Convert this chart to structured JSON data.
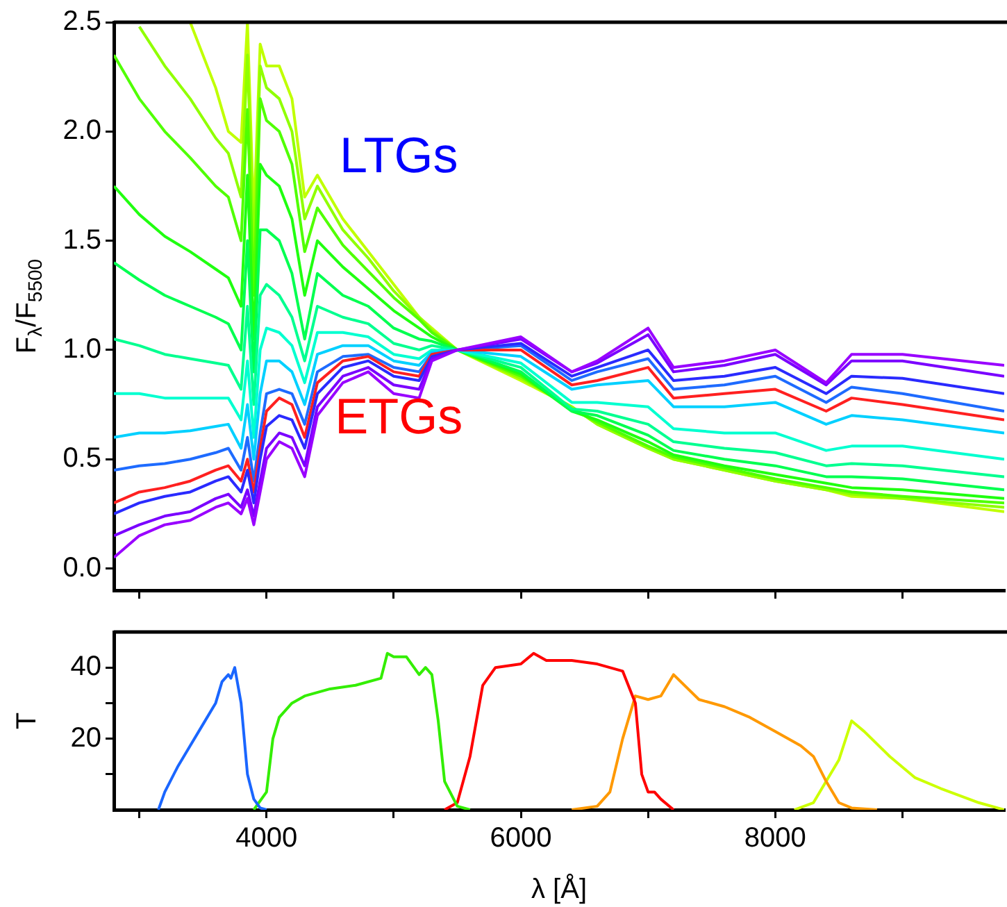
{
  "chart_data": [
    {
      "type": "line",
      "ylabel": "F$_{λ}$/F$_{5500}$",
      "xlim": [
        2800,
        9800
      ],
      "ylim": [
        -0.1,
        2.5
      ],
      "xticks": [
        {
          "value": 3000,
          "label": null
        },
        {
          "value": 4000,
          "label": null
        },
        {
          "value": 5000,
          "label": null
        },
        {
          "value": 6000,
          "label": null
        },
        {
          "value": 7000,
          "label": null
        },
        {
          "value": 8000,
          "label": null
        },
        {
          "value": 9000,
          "label": null
        }
      ],
      "yticks": [
        {
          "value": 0,
          "label": "0.0"
        },
        {
          "value": 0.5,
          "label": "0.5"
        },
        {
          "value": 1,
          "label": "1.0"
        },
        {
          "value": 1.5,
          "label": "1.5"
        },
        {
          "value": 2,
          "label": "2.0"
        },
        {
          "value": 2.5,
          "label": "2.5"
        }
      ],
      "tick_labels": "y",
      "grid": false,
      "legend": false,
      "marker": "none",
      "line_style": "solid",
      "x": [
        2800,
        3000,
        3200,
        3400,
        3600,
        3700,
        3800,
        3850,
        3900,
        3950,
        4000,
        4100,
        4200,
        4300,
        4400,
        4600,
        4800,
        5000,
        5200,
        5300,
        5500,
        6000,
        6400,
        6600,
        7000,
        7200,
        7600,
        8000,
        8400,
        8600,
        9000,
        9800
      ],
      "series": [
        {
          "color": "#9900ff",
          "values": [
            0.05,
            0.15,
            0.2,
            0.22,
            0.28,
            0.3,
            0.25,
            0.32,
            0.2,
            0.35,
            0.5,
            0.58,
            0.55,
            0.42,
            0.7,
            0.85,
            0.9,
            0.8,
            0.78,
            0.95,
            1.0,
            1.06,
            0.9,
            0.95,
            1.1,
            0.92,
            0.95,
            1.0,
            0.85,
            0.98,
            0.98,
            0.93
          ]
        },
        {
          "color": "#7a00ff",
          "values": [
            0.15,
            0.2,
            0.24,
            0.26,
            0.32,
            0.34,
            0.28,
            0.36,
            0.24,
            0.4,
            0.55,
            0.62,
            0.6,
            0.47,
            0.74,
            0.88,
            0.92,
            0.84,
            0.82,
            0.96,
            1.0,
            1.05,
            0.9,
            0.94,
            1.07,
            0.9,
            0.93,
            0.98,
            0.84,
            0.95,
            0.95,
            0.88
          ]
        },
        {
          "color": "#2a2aff",
          "values": [
            0.25,
            0.3,
            0.33,
            0.35,
            0.4,
            0.42,
            0.35,
            0.45,
            0.3,
            0.5,
            0.65,
            0.7,
            0.68,
            0.55,
            0.8,
            0.92,
            0.95,
            0.88,
            0.86,
            0.97,
            1.0,
            1.03,
            0.88,
            0.92,
            1.0,
            0.86,
            0.88,
            0.92,
            0.8,
            0.88,
            0.87,
            0.8
          ]
        },
        {
          "color": "#ff2020",
          "values": [
            0.3,
            0.35,
            0.37,
            0.4,
            0.45,
            0.47,
            0.4,
            0.5,
            0.35,
            0.55,
            0.72,
            0.78,
            0.75,
            0.6,
            0.85,
            0.95,
            0.97,
            0.9,
            0.88,
            0.98,
            1.0,
            1.0,
            0.84,
            0.86,
            0.92,
            0.78,
            0.8,
            0.82,
            0.72,
            0.78,
            0.75,
            0.68
          ]
        },
        {
          "color": "#1e6bff",
          "values": [
            0.45,
            0.47,
            0.48,
            0.5,
            0.53,
            0.55,
            0.45,
            0.6,
            0.4,
            0.62,
            0.8,
            0.82,
            0.8,
            0.66,
            0.9,
            0.97,
            0.98,
            0.92,
            0.9,
            0.98,
            1.0,
            1.02,
            0.86,
            0.9,
            0.96,
            0.82,
            0.84,
            0.88,
            0.76,
            0.83,
            0.8,
            0.72
          ]
        },
        {
          "color": "#00d0ff",
          "values": [
            0.6,
            0.62,
            0.62,
            0.63,
            0.65,
            0.66,
            0.55,
            0.75,
            0.5,
            0.8,
            0.95,
            0.95,
            0.9,
            0.75,
            0.98,
            1.02,
            1.02,
            0.95,
            0.93,
            0.99,
            1.0,
            0.97,
            0.82,
            0.84,
            0.86,
            0.74,
            0.74,
            0.76,
            0.66,
            0.7,
            0.68,
            0.62
          ]
        },
        {
          "color": "#00ffd0",
          "values": [
            0.8,
            0.8,
            0.78,
            0.78,
            0.78,
            0.78,
            0.68,
            0.95,
            0.6,
            1.0,
            1.1,
            1.08,
            1.02,
            0.85,
            1.08,
            1.08,
            1.06,
            0.98,
            0.96,
            1.0,
            1.0,
            0.94,
            0.76,
            0.76,
            0.74,
            0.64,
            0.62,
            0.62,
            0.54,
            0.56,
            0.56,
            0.5
          ]
        },
        {
          "color": "#00ff90",
          "values": [
            1.05,
            1.02,
            0.98,
            0.96,
            0.94,
            0.93,
            0.82,
            1.2,
            0.75,
            1.25,
            1.3,
            1.25,
            1.15,
            0.95,
            1.2,
            1.15,
            1.12,
            1.03,
            1.0,
            1.02,
            1.0,
            0.92,
            0.73,
            0.72,
            0.66,
            0.58,
            0.55,
            0.53,
            0.47,
            0.48,
            0.47,
            0.42
          ]
        },
        {
          "color": "#00ff50",
          "values": [
            1.4,
            1.32,
            1.25,
            1.2,
            1.15,
            1.12,
            1.0,
            1.5,
            0.9,
            1.55,
            1.55,
            1.5,
            1.35,
            1.05,
            1.35,
            1.25,
            1.2,
            1.1,
            1.05,
            1.04,
            1.0,
            0.9,
            0.72,
            0.7,
            0.61,
            0.54,
            0.5,
            0.47,
            0.42,
            0.42,
            0.41,
            0.36
          ]
        },
        {
          "color": "#20ff10",
          "values": [
            1.75,
            1.62,
            1.52,
            1.45,
            1.37,
            1.33,
            1.2,
            1.8,
            1.05,
            1.85,
            1.8,
            1.75,
            1.6,
            1.25,
            1.5,
            1.38,
            1.28,
            1.18,
            1.1,
            1.06,
            1.0,
            0.89,
            0.72,
            0.68,
            0.58,
            0.52,
            0.47,
            0.43,
            0.39,
            0.37,
            0.36,
            0.32
          ]
        },
        {
          "color": "#50ff00",
          "values": [
            2.35,
            2.15,
            2.0,
            1.88,
            1.75,
            1.7,
            1.5,
            2.1,
            1.25,
            2.15,
            2.05,
            2.0,
            1.85,
            1.45,
            1.65,
            1.48,
            1.36,
            1.24,
            1.14,
            1.08,
            1.0,
            0.88,
            0.73,
            0.67,
            0.56,
            0.51,
            0.46,
            0.41,
            0.37,
            0.35,
            0.33,
            0.3
          ]
        },
        {
          "color": "#90ff00",
          "values": [
            null,
            2.48,
            2.3,
            2.15,
            1.97,
            1.9,
            1.7,
            2.35,
            1.45,
            2.3,
            2.2,
            2.15,
            2.0,
            1.6,
            1.75,
            1.55,
            1.42,
            1.27,
            1.15,
            1.09,
            1.0,
            0.87,
            0.74,
            0.66,
            0.55,
            0.5,
            0.45,
            0.4,
            0.36,
            0.34,
            0.32,
            0.28
          ]
        },
        {
          "color": "#c0ff00",
          "values": [
            null,
            null,
            null,
            2.5,
            2.2,
            2.0,
            1.95,
            2.5,
            1.6,
            2.4,
            2.3,
            2.3,
            2.15,
            1.7,
            1.8,
            1.6,
            1.45,
            1.3,
            1.15,
            1.1,
            1.0,
            0.86,
            0.74,
            0.66,
            0.55,
            0.5,
            0.45,
            0.4,
            0.36,
            0.33,
            0.32,
            0.26
          ]
        }
      ],
      "annotations": [
        "LTGs",
        "ETGs"
      ]
    },
    {
      "type": "line",
      "xlabel": "λ [Å]",
      "ylabel": "T",
      "xlim": [
        2800,
        9800
      ],
      "ylim": [
        0,
        50
      ],
      "xticks": [
        {
          "value": 3000,
          "label": null
        },
        4000,
        {
          "value": 5000,
          "label": null
        },
        6000,
        {
          "value": 7000,
          "label": null
        },
        8000,
        {
          "value": 9000,
          "label": null
        }
      ],
      "yticks": [
        {
          "value": 10,
          "label": null
        },
        20,
        {
          "value": 30,
          "label": null
        },
        40
      ],
      "grid": false,
      "legend": false,
      "marker": "none",
      "line_style": "solid",
      "series": [
        {
          "color": "#1a66ff",
          "x": [
            3150,
            3200,
            3300,
            3400,
            3500,
            3600,
            3650,
            3700,
            3720,
            3750,
            3800,
            3850,
            3900,
            3950,
            4000
          ],
          "values": [
            0,
            5,
            12,
            18,
            24,
            30,
            36,
            38,
            37,
            40,
            30,
            10,
            3,
            0.5,
            0
          ]
        },
        {
          "color": "#33ee00",
          "x": [
            3900,
            4000,
            4050,
            4100,
            4200,
            4300,
            4500,
            4700,
            4900,
            4950,
            5000,
            5100,
            5200,
            5250,
            5300,
            5350,
            5400,
            5500,
            5600
          ],
          "values": [
            0,
            5,
            20,
            26,
            30,
            32,
            34,
            35,
            37,
            44,
            43,
            43,
            38,
            40,
            38,
            25,
            8,
            1,
            0
          ]
        },
        {
          "color": "#ff0000",
          "x": [
            5400,
            5500,
            5600,
            5700,
            5800,
            6000,
            6100,
            6200,
            6400,
            6600,
            6800,
            6900,
            6950,
            7000,
            7050,
            7100,
            7200
          ],
          "values": [
            0,
            2,
            15,
            35,
            40,
            41,
            44,
            42,
            42,
            41,
            39,
            30,
            10,
            5,
            5,
            3,
            0
          ]
        },
        {
          "color": "#ff9900",
          "x": [
            6400,
            6600,
            6700,
            6800,
            6900,
            7000,
            7100,
            7200,
            7400,
            7600,
            7800,
            8000,
            8200,
            8300,
            8400,
            8500,
            8600,
            8800
          ],
          "values": [
            0,
            1,
            5,
            20,
            32,
            31,
            32,
            38,
            31,
            29,
            26,
            22,
            18,
            15,
            8,
            2,
            0.5,
            0
          ]
        },
        {
          "color": "#ccff00",
          "x": [
            8150,
            8300,
            8400,
            8500,
            8600,
            8700,
            8900,
            9100,
            9300,
            9600,
            9800
          ],
          "values": [
            0,
            2,
            8,
            14,
            25,
            22,
            15,
            9,
            6,
            2,
            0
          ]
        }
      ]
    }
  ]
}
